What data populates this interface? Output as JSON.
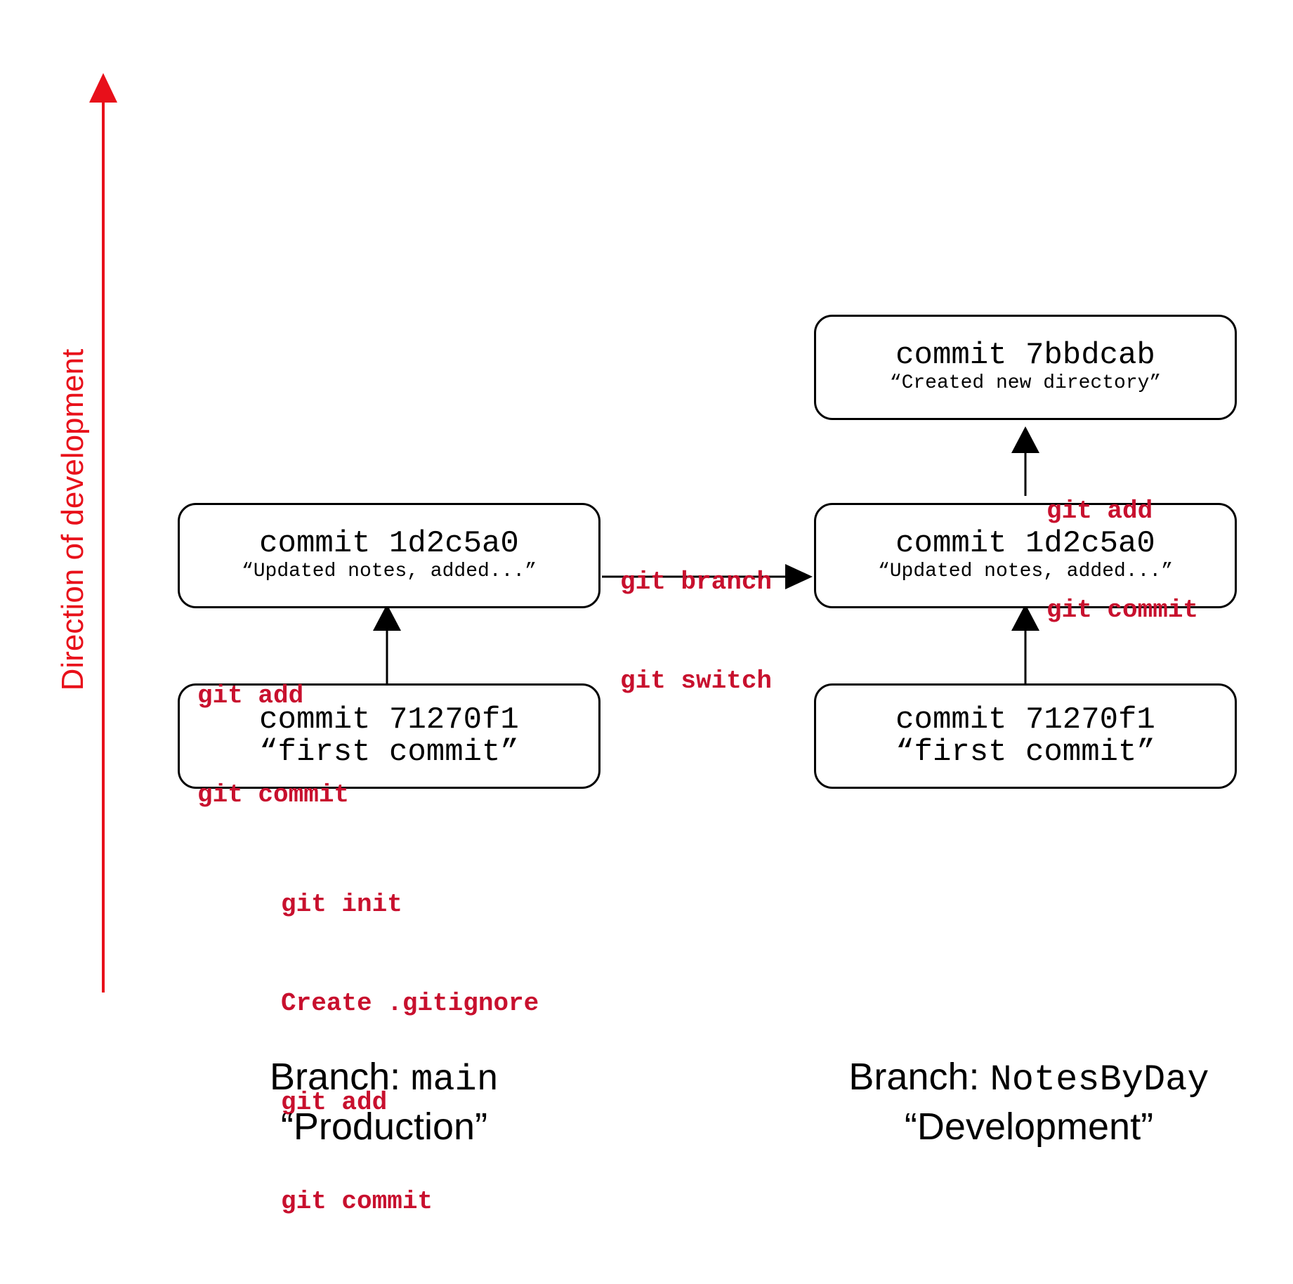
{
  "axis": {
    "label": "Direction of development",
    "color": "#e8101a"
  },
  "colors": {
    "command": "#c8102e",
    "box_border": "#000000",
    "arrow": "#000000"
  },
  "commits": {
    "main_first": {
      "id": "commit 71270f1",
      "message": "“first commit”"
    },
    "main_second": {
      "id": "commit 1d2c5a0",
      "message": "“Updated notes, added...”"
    },
    "dev_first": {
      "id": "commit 71270f1",
      "message": "“first commit”"
    },
    "dev_second": {
      "id": "commit 1d2c5a0",
      "message": "“Updated notes, added...”"
    },
    "dev_third": {
      "id": "commit 7bbdcab",
      "message": "“Created new directory”"
    }
  },
  "commands": {
    "init": [
      "git init",
      "Create .gitignore",
      "git add",
      "git commit"
    ],
    "main_add_commit": [
      "git add",
      "git commit"
    ],
    "branch_switch": [
      "git branch",
      "git switch"
    ],
    "dev_add_commit": [
      "git add",
      "git commit"
    ]
  },
  "branches": {
    "main": {
      "prefix": "Branch: ",
      "name": "main",
      "role": "“Production”"
    },
    "dev": {
      "prefix": "Branch: ",
      "name": "NotesByDay",
      "role": "“Development”"
    }
  }
}
